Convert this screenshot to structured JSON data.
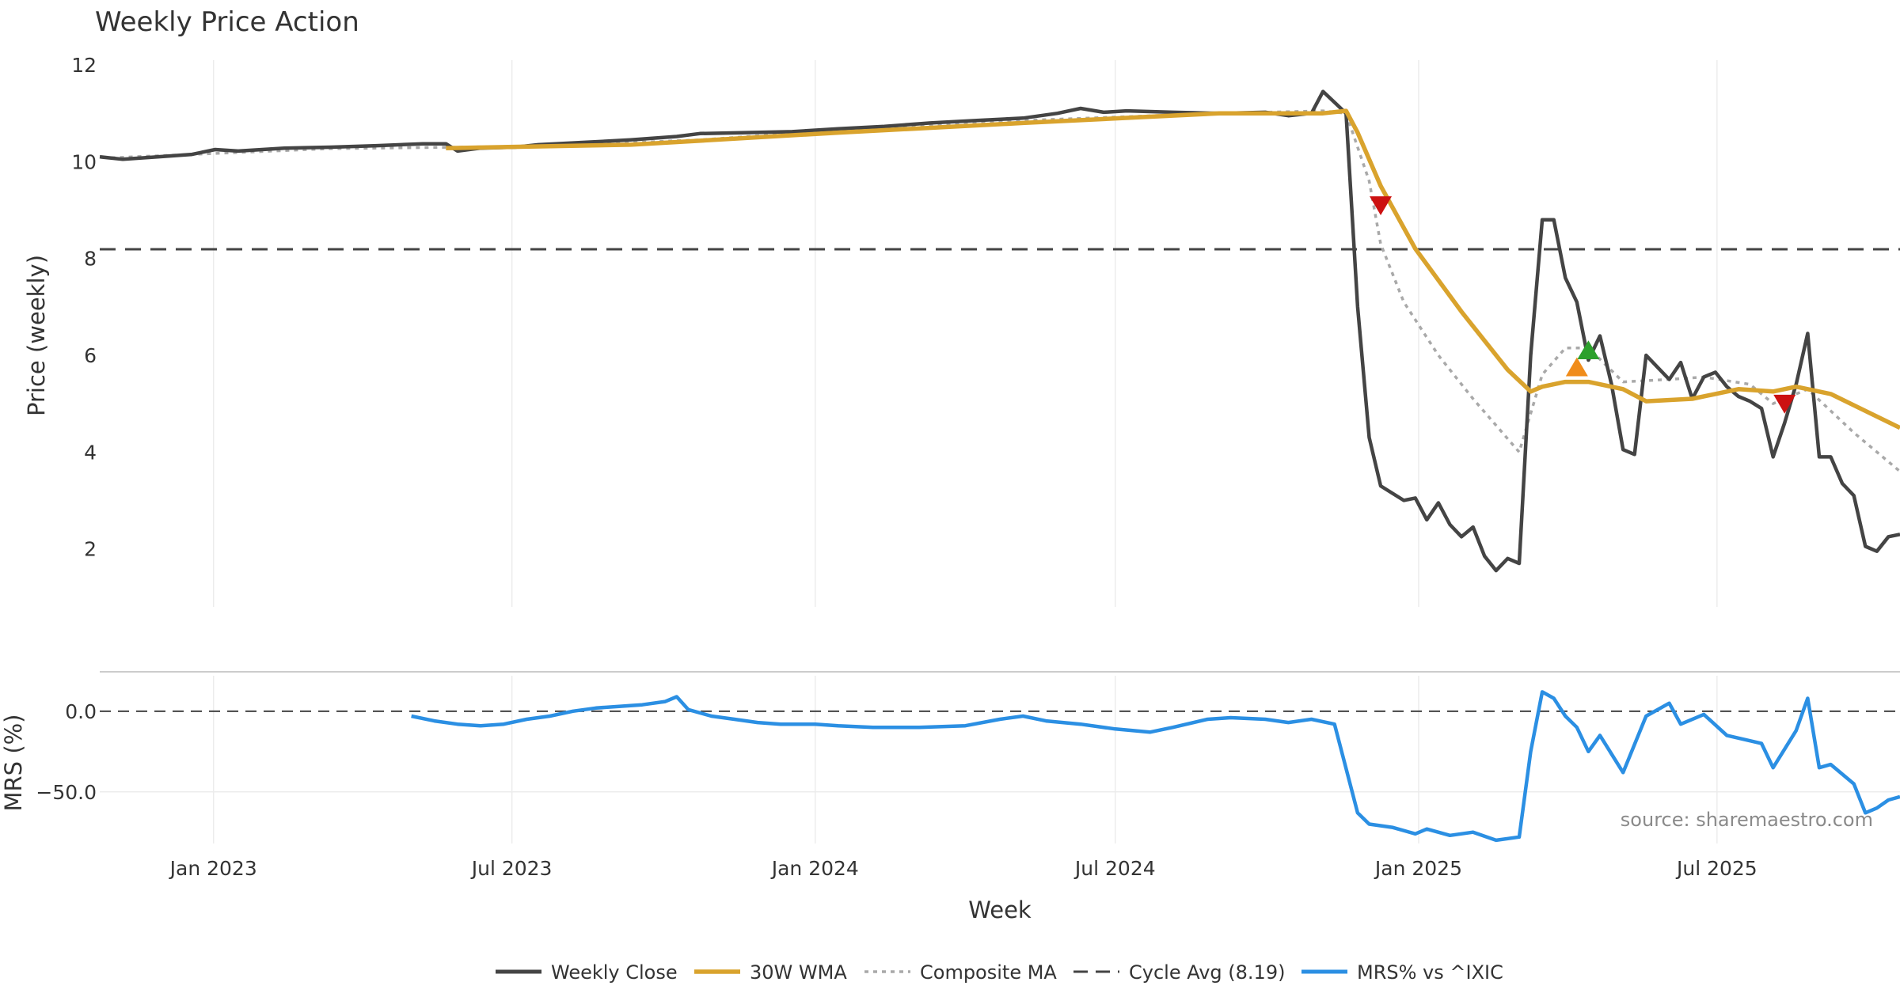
{
  "chart_data": {
    "type": "line",
    "title": "Weekly Price Action",
    "xlabel": "Week",
    "x_ticks": [
      "Jan 2023",
      "Jul 2023",
      "Jan 2024",
      "Jul 2024",
      "Jan 2025",
      "Jul 2025"
    ],
    "x_range": [
      "2022-10-24",
      "2025-10-20"
    ],
    "price_panel": {
      "ylabel": "Price (weekly)",
      "ylim": [
        0.8,
        12
      ],
      "y_ticks": [
        "2",
        "4",
        "6",
        "8",
        "10",
        "12"
      ],
      "series": [
        {
          "name": "Weekly Close",
          "color": "#444444",
          "points": [
            [
              "2022-10-24",
              10.1
            ],
            [
              "2022-11-07",
              10.05
            ],
            [
              "2022-11-28",
              10.1
            ],
            [
              "2022-12-19",
              10.15
            ],
            [
              "2023-01-02",
              10.25
            ],
            [
              "2023-01-16",
              10.22
            ],
            [
              "2023-02-13",
              10.28
            ],
            [
              "2023-03-13",
              10.3
            ],
            [
              "2023-04-10",
              10.33
            ],
            [
              "2023-05-08",
              10.37
            ],
            [
              "2023-05-22",
              10.37
            ],
            [
              "2023-05-29",
              10.22
            ],
            [
              "2023-06-12",
              10.28
            ],
            [
              "2023-07-03",
              10.3
            ],
            [
              "2023-07-17",
              10.35
            ],
            [
              "2023-08-14",
              10.4
            ],
            [
              "2023-09-11",
              10.45
            ],
            [
              "2023-10-09",
              10.52
            ],
            [
              "2023-10-23",
              10.58
            ],
            [
              "2023-11-20",
              10.6
            ],
            [
              "2023-12-18",
              10.62
            ],
            [
              "2024-01-15",
              10.68
            ],
            [
              "2024-02-12",
              10.73
            ],
            [
              "2024-03-11",
              10.8
            ],
            [
              "2024-04-08",
              10.85
            ],
            [
              "2024-05-06",
              10.9
            ],
            [
              "2024-05-27",
              11.0
            ],
            [
              "2024-06-10",
              11.1
            ],
            [
              "2024-06-24",
              11.02
            ],
            [
              "2024-07-08",
              11.05
            ],
            [
              "2024-08-05",
              11.02
            ],
            [
              "2024-09-02",
              11.0
            ],
            [
              "2024-09-30",
              11.02
            ],
            [
              "2024-10-14",
              10.95
            ],
            [
              "2024-10-28",
              11.0
            ],
            [
              "2024-11-04",
              11.45
            ],
            [
              "2024-11-18",
              11.0
            ],
            [
              "2024-11-25",
              7.0
            ],
            [
              "2024-12-02",
              4.3
            ],
            [
              "2024-12-09",
              3.3
            ],
            [
              "2024-12-23",
              3.0
            ],
            [
              "2024-12-30",
              3.05
            ],
            [
              "2025-01-06",
              2.6
            ],
            [
              "2025-01-13",
              2.95
            ],
            [
              "2025-01-20",
              2.5
            ],
            [
              "2025-01-27",
              2.25
            ],
            [
              "2025-02-03",
              2.45
            ],
            [
              "2025-02-10",
              1.85
            ],
            [
              "2025-02-17",
              1.55
            ],
            [
              "2025-02-24",
              1.8
            ],
            [
              "2025-03-03",
              1.7
            ],
            [
              "2025-03-10",
              6.0
            ],
            [
              "2025-03-17",
              8.8
            ],
            [
              "2025-03-24",
              8.8
            ],
            [
              "2025-03-31",
              7.6
            ],
            [
              "2025-04-07",
              7.1
            ],
            [
              "2025-04-14",
              5.9
            ],
            [
              "2025-04-21",
              6.4
            ],
            [
              "2025-04-28",
              5.4
            ],
            [
              "2025-05-05",
              4.05
            ],
            [
              "2025-05-12",
              3.95
            ],
            [
              "2025-05-19",
              6.0
            ],
            [
              "2025-05-26",
              5.75
            ],
            [
              "2025-06-02",
              5.5
            ],
            [
              "2025-06-09",
              5.85
            ],
            [
              "2025-06-16",
              5.1
            ],
            [
              "2025-06-23",
              5.55
            ],
            [
              "2025-06-30",
              5.65
            ],
            [
              "2025-07-07",
              5.35
            ],
            [
              "2025-07-14",
              5.15
            ],
            [
              "2025-07-21",
              5.05
            ],
            [
              "2025-07-28",
              4.9
            ],
            [
              "2025-08-04",
              3.9
            ],
            [
              "2025-08-11",
              4.6
            ],
            [
              "2025-08-18",
              5.4
            ],
            [
              "2025-08-25",
              6.45
            ],
            [
              "2025-09-01",
              3.9
            ],
            [
              "2025-09-08",
              3.9
            ],
            [
              "2025-09-15",
              3.35
            ],
            [
              "2025-09-22",
              3.1
            ],
            [
              "2025-09-29",
              2.05
            ],
            [
              "2025-10-06",
              1.95
            ],
            [
              "2025-10-13",
              2.25
            ],
            [
              "2025-10-20",
              2.3
            ]
          ]
        },
        {
          "name": "30W WMA",
          "color": "#d9a32d",
          "points": [
            [
              "2023-05-22",
              10.28
            ],
            [
              "2023-09-11",
              10.35
            ],
            [
              "2024-01-15",
              10.6
            ],
            [
              "2024-05-06",
              10.8
            ],
            [
              "2024-09-02",
              11.0
            ],
            [
              "2024-11-04",
              11.0
            ],
            [
              "2024-11-18",
              11.05
            ],
            [
              "2024-11-25",
              10.6
            ],
            [
              "2024-12-09",
              9.5
            ],
            [
              "2024-12-30",
              8.2
            ],
            [
              "2025-01-27",
              6.9
            ],
            [
              "2025-02-24",
              5.7
            ],
            [
              "2025-03-10",
              5.25
            ],
            [
              "2025-03-17",
              5.35
            ],
            [
              "2025-03-31",
              5.45
            ],
            [
              "2025-04-14",
              5.45
            ],
            [
              "2025-05-05",
              5.3
            ],
            [
              "2025-05-19",
              5.05
            ],
            [
              "2025-06-16",
              5.1
            ],
            [
              "2025-07-14",
              5.3
            ],
            [
              "2025-08-04",
              5.25
            ],
            [
              "2025-08-18",
              5.35
            ],
            [
              "2025-09-08",
              5.2
            ],
            [
              "2025-10-20",
              4.5
            ]
          ]
        },
        {
          "name": "Composite MA",
          "color": "#a9a9a9",
          "points": [
            [
              "2022-10-31",
              10.08
            ],
            [
              "2023-03-13",
              10.27
            ],
            [
              "2023-07-17",
              10.32
            ],
            [
              "2023-10-23",
              10.45
            ],
            [
              "2024-01-15",
              10.65
            ],
            [
              "2024-05-06",
              10.85
            ],
            [
              "2024-09-02",
              11.0
            ],
            [
              "2024-11-04",
              11.05
            ],
            [
              "2024-11-18",
              11.0
            ],
            [
              "2024-12-02",
              9.6
            ],
            [
              "2024-12-09",
              8.3
            ],
            [
              "2024-12-23",
              7.1
            ],
            [
              "2025-01-13",
              6.0
            ],
            [
              "2025-02-03",
              5.1
            ],
            [
              "2025-03-03",
              4.0
            ],
            [
              "2025-03-17",
              5.6
            ],
            [
              "2025-03-31",
              6.15
            ],
            [
              "2025-04-14",
              6.15
            ],
            [
              "2025-05-05",
              5.45
            ],
            [
              "2025-06-02",
              5.5
            ],
            [
              "2025-06-23",
              5.55
            ],
            [
              "2025-07-21",
              5.4
            ],
            [
              "2025-08-04",
              5.0
            ],
            [
              "2025-08-25",
              5.3
            ],
            [
              "2025-09-22",
              4.4
            ],
            [
              "2025-10-20",
              3.6
            ]
          ]
        },
        {
          "name": "Cycle Avg (8.19)",
          "color": "#444444",
          "value": 8.19
        }
      ],
      "markers": [
        {
          "kind": "sell",
          "color": "#cc1111",
          "x": "2024-12-09",
          "y": 9.1
        },
        {
          "kind": "buy",
          "color": "#f08c1a",
          "x": "2025-04-07",
          "y": 5.75
        },
        {
          "kind": "buy",
          "color": "#2ca02c",
          "x": "2025-04-14",
          "y": 6.1
        },
        {
          "kind": "sell",
          "color": "#cc1111",
          "x": "2025-08-11",
          "y": 5.0
        }
      ]
    },
    "mrs_panel": {
      "ylabel": "MRS (%)",
      "ylim": [
        -82,
        22
      ],
      "y_ticks": [
        "0.0",
        "−50.0"
      ],
      "series": [
        {
          "name": "MRS% vs ^IXIC",
          "color": "#2b8fe3",
          "points": [
            [
              "2023-05-01",
              -3
            ],
            [
              "2023-05-15",
              -6
            ],
            [
              "2023-05-29",
              -8
            ],
            [
              "2023-06-12",
              -9
            ],
            [
              "2023-06-26",
              -8
            ],
            [
              "2023-07-10",
              -5
            ],
            [
              "2023-07-24",
              -3
            ],
            [
              "2023-08-07",
              0
            ],
            [
              "2023-08-21",
              2
            ],
            [
              "2023-09-04",
              3
            ],
            [
              "2023-09-18",
              4
            ],
            [
              "2023-10-02",
              6
            ],
            [
              "2023-10-09",
              9
            ],
            [
              "2023-10-16",
              1
            ],
            [
              "2023-10-30",
              -3
            ],
            [
              "2023-11-13",
              -5
            ],
            [
              "2023-11-27",
              -7
            ],
            [
              "2023-12-11",
              -8
            ],
            [
              "2024-01-01",
              -8
            ],
            [
              "2024-01-15",
              -9
            ],
            [
              "2024-02-05",
              -10
            ],
            [
              "2024-03-04",
              -10
            ],
            [
              "2024-04-01",
              -9
            ],
            [
              "2024-04-22",
              -5
            ],
            [
              "2024-05-06",
              -3
            ],
            [
              "2024-05-20",
              -6
            ],
            [
              "2024-06-10",
              -8
            ],
            [
              "2024-07-01",
              -11
            ],
            [
              "2024-07-22",
              -13
            ],
            [
              "2024-08-05",
              -10
            ],
            [
              "2024-08-26",
              -5
            ],
            [
              "2024-09-09",
              -4
            ],
            [
              "2024-09-30",
              -5
            ],
            [
              "2024-10-14",
              -7
            ],
            [
              "2024-10-28",
              -5
            ],
            [
              "2024-11-11",
              -8
            ],
            [
              "2024-11-25",
              -63
            ],
            [
              "2024-12-02",
              -70
            ],
            [
              "2024-12-16",
              -72
            ],
            [
              "2024-12-30",
              -76
            ],
            [
              "2025-01-06",
              -73
            ],
            [
              "2025-01-20",
              -77
            ],
            [
              "2025-02-03",
              -75
            ],
            [
              "2025-02-17",
              -80
            ],
            [
              "2025-03-03",
              -78
            ],
            [
              "2025-03-10",
              -25
            ],
            [
              "2025-03-17",
              12
            ],
            [
              "2025-03-24",
              8
            ],
            [
              "2025-03-31",
              -3
            ],
            [
              "2025-04-07",
              -10
            ],
            [
              "2025-04-14",
              -25
            ],
            [
              "2025-04-21",
              -15
            ],
            [
              "2025-05-05",
              -38
            ],
            [
              "2025-05-19",
              -3
            ],
            [
              "2025-06-02",
              5
            ],
            [
              "2025-06-09",
              -8
            ],
            [
              "2025-06-23",
              -2
            ],
            [
              "2025-07-07",
              -15
            ],
            [
              "2025-07-28",
              -20
            ],
            [
              "2025-08-04",
              -35
            ],
            [
              "2025-08-18",
              -12
            ],
            [
              "2025-08-25",
              8
            ],
            [
              "2025-09-01",
              -35
            ],
            [
              "2025-09-08",
              -33
            ],
            [
              "2025-09-22",
              -45
            ],
            [
              "2025-09-29",
              -63
            ],
            [
              "2025-10-06",
              -60
            ],
            [
              "2025-10-13",
              -55
            ],
            [
              "2025-10-20",
              -53
            ]
          ]
        }
      ]
    },
    "legend": {
      "position": "bottom-center",
      "entries": [
        "Weekly Close",
        "30W WMA",
        "Composite MA",
        "Cycle Avg (8.19)",
        "MRS% vs ^IXIC"
      ]
    },
    "grid": true,
    "annotation": "source: sharemaestro.com"
  }
}
